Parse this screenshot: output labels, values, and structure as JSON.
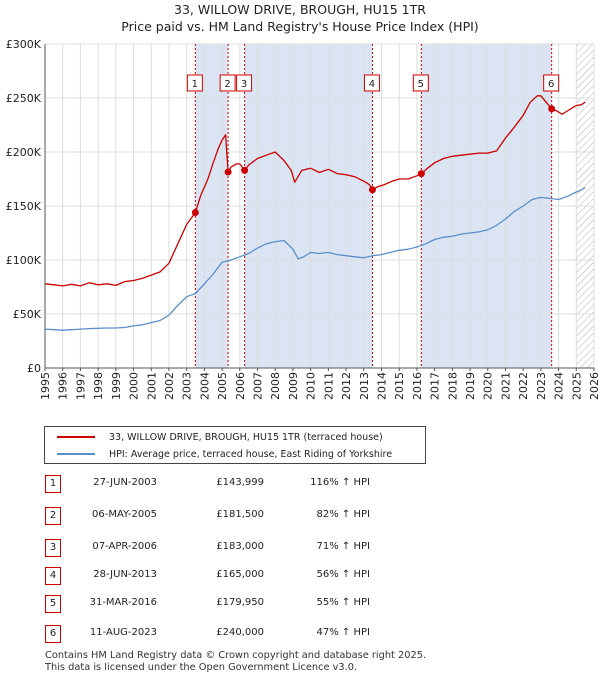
{
  "title_line1": "33, WILLOW DRIVE, BROUGH, HU15 1TR",
  "title_line2": "Price paid vs. HM Land Registry's House Price Index (HPI)",
  "colors": {
    "property": "#cc0000",
    "hpi": "#5b8fcb",
    "shade": "#dbe4f3",
    "grid": "#dddddd",
    "marker_line": "#cc0000"
  },
  "legend": {
    "property_label": "33, WILLOW DRIVE, BROUGH, HU15 1TR (terraced house)",
    "hpi_label": "HPI: Average price, terraced house, East Riding of Yorkshire"
  },
  "transactions": [
    {
      "num": "1",
      "date": "27-JUN-2003",
      "price": "£143,999",
      "hpi_change": "116% ↑ HPI"
    },
    {
      "num": "2",
      "date": "06-MAY-2005",
      "price": "£181,500",
      "hpi_change": "82% ↑ HPI"
    },
    {
      "num": "3",
      "date": "07-APR-2006",
      "price": "£183,000",
      "hpi_change": "71% ↑ HPI"
    },
    {
      "num": "4",
      "date": "28-JUN-2013",
      "price": "£165,000",
      "hpi_change": "56% ↑ HPI"
    },
    {
      "num": "5",
      "date": "31-MAR-2016",
      "price": "£179,950",
      "hpi_change": "55% ↑ HPI"
    },
    {
      "num": "6",
      "date": "11-AUG-2023",
      "price": "£240,000",
      "hpi_change": "47% ↑ HPI"
    }
  ],
  "footer_line1": "Contains HM Land Registry data © Crown copyright and database right 2025.",
  "footer_line2": "This data is licensed under the Open Government Licence v3.0.",
  "chart_data": {
    "type": "line",
    "title": "33, WILLOW DRIVE, BROUGH, HU15 1TR — Price paid vs. HM Land Registry's House Price Index (HPI)",
    "xlim": [
      1995,
      2026
    ],
    "ylim": [
      0,
      300000
    ],
    "x_ticks": [
      1995,
      1996,
      1997,
      1998,
      1999,
      2000,
      2001,
      2002,
      2003,
      2004,
      2005,
      2006,
      2007,
      2008,
      2009,
      2010,
      2011,
      2012,
      2013,
      2014,
      2015,
      2016,
      2017,
      2018,
      2019,
      2020,
      2021,
      2022,
      2023,
      2024,
      2025,
      2026
    ],
    "y_ticks": [
      {
        "value": 0,
        "label": "£0"
      },
      {
        "value": 50000,
        "label": "£50K"
      },
      {
        "value": 100000,
        "label": "£100K"
      },
      {
        "value": 150000,
        "label": "£150K"
      },
      {
        "value": 200000,
        "label": "£200K"
      },
      {
        "value": 250000,
        "label": "£250K"
      },
      {
        "value": 300000,
        "label": "£300K"
      }
    ],
    "grid": true,
    "shaded_periods": [
      [
        2003.49,
        2005.34
      ],
      [
        2006.27,
        2013.49
      ],
      [
        2016.25,
        2023.61
      ]
    ],
    "future_hatch_from": 2025.0,
    "sales": [
      {
        "label": "1",
        "x": 2003.49,
        "y": 143999
      },
      {
        "label": "2",
        "x": 2005.34,
        "y": 181500
      },
      {
        "label": "3",
        "x": 2006.27,
        "y": 183000
      },
      {
        "label": "4",
        "x": 2013.49,
        "y": 165000
      },
      {
        "label": "5",
        "x": 2016.25,
        "y": 179950
      },
      {
        "label": "6",
        "x": 2023.61,
        "y": 240000
      }
    ],
    "series": [
      {
        "name": "33, WILLOW DRIVE, BROUGH, HU15 1TR (terraced house)",
        "x": [
          1995,
          1995.5,
          1996,
          1996.5,
          1997,
          1997.5,
          1998,
          1998.5,
          1999,
          1999.5,
          2000,
          2000.5,
          2001,
          2001.5,
          2002,
          2002.5,
          2003,
          2003.49,
          2003.8,
          2004.2,
          2004.5,
          2004.8,
          2005.0,
          2005.2,
          2005.34,
          2005.5,
          2005.8,
          2006.0,
          2006.27,
          2006.5,
          2007.0,
          2007.5,
          2008.0,
          2008.5,
          2008.9,
          2009.1,
          2009.5,
          2010.0,
          2010.5,
          2011.0,
          2011.5,
          2012.0,
          2012.5,
          2013.0,
          2013.3,
          2013.49,
          2013.8,
          2014.2,
          2014.6,
          2015.0,
          2015.5,
          2016.0,
          2016.25,
          2016.6,
          2017.0,
          2017.5,
          2018.0,
          2018.5,
          2019.0,
          2019.5,
          2020.0,
          2020.5,
          2021.0,
          2021.5,
          2022.0,
          2022.4,
          2022.8,
          2023.0,
          2023.3,
          2023.61,
          2023.9,
          2024.2,
          2024.5,
          2024.8,
          2025.0,
          2025.3,
          2025.5
        ],
        "values": [
          78000,
          77000,
          76000,
          77500,
          76000,
          79000,
          77000,
          78000,
          76500,
          80000,
          81000,
          83000,
          86000,
          89000,
          97000,
          115000,
          133000,
          143999,
          160000,
          175000,
          190000,
          204000,
          211000,
          216000,
          181500,
          186000,
          189000,
          189000,
          183000,
          188000,
          194000,
          197000,
          200000,
          192000,
          183000,
          172000,
          183000,
          185000,
          181000,
          184000,
          180000,
          179000,
          177000,
          173000,
          170000,
          165000,
          168000,
          170000,
          173000,
          175000,
          175000,
          178000,
          179950,
          185000,
          190000,
          194000,
          196000,
          197000,
          198000,
          199000,
          199000,
          201000,
          213000,
          223000,
          234000,
          246000,
          252000,
          252000,
          246000,
          240000,
          238000,
          235000,
          238000,
          241000,
          243000,
          244000,
          246000
        ]
      },
      {
        "name": "HPI: Average price, terraced house, East Riding of Yorkshire",
        "x": [
          1995,
          1995.5,
          1996,
          1996.5,
          1997,
          1997.5,
          1998,
          1998.5,
          1999,
          1999.5,
          2000,
          2000.5,
          2001,
          2001.5,
          2002,
          2002.5,
          2003,
          2003.5,
          2004,
          2004.5,
          2005,
          2005.5,
          2006,
          2006.5,
          2007,
          2007.5,
          2008,
          2008.5,
          2009,
          2009.3,
          2009.6,
          2010,
          2010.5,
          2011,
          2011.5,
          2012,
          2012.5,
          2013,
          2013.5,
          2014,
          2014.5,
          2015,
          2015.5,
          2016,
          2016.5,
          2017,
          2017.5,
          2018,
          2018.5,
          2019,
          2019.5,
          2020,
          2020.5,
          2021,
          2021.5,
          2022,
          2022.5,
          2023,
          2023.5,
          2024,
          2024.5,
          2025,
          2025.3,
          2025.5
        ],
        "values": [
          36000,
          35500,
          35000,
          35500,
          36000,
          36500,
          36800,
          37000,
          37000,
          37500,
          39000,
          40000,
          42000,
          44000,
          49000,
          58000,
          66000,
          69000,
          78000,
          87000,
          98000,
          100000,
          103000,
          106000,
          111000,
          115000,
          117000,
          118000,
          110000,
          101000,
          103000,
          107000,
          106000,
          107000,
          105000,
          104000,
          103000,
          102000,
          104000,
          105000,
          107000,
          109000,
          110000,
          112000,
          115000,
          119000,
          121000,
          122000,
          124000,
          125000,
          126000,
          128000,
          132000,
          138000,
          145000,
          150000,
          156000,
          158000,
          157000,
          156000,
          159000,
          163000,
          165000,
          167000
        ]
      }
    ]
  }
}
